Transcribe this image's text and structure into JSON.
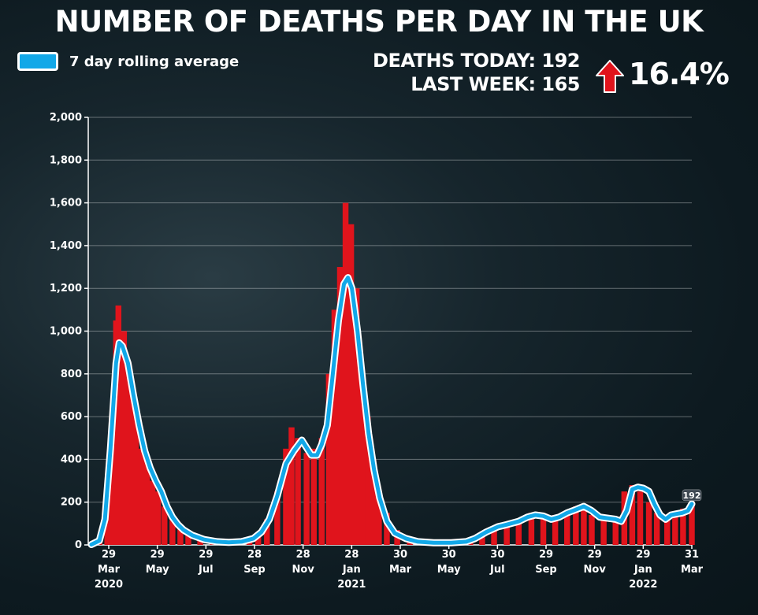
{
  "title": "NUMBER OF DEATHS PER DAY IN THE UK",
  "legend": {
    "label": "7 day rolling average"
  },
  "stats": {
    "today": "DEATHS TODAY: 192",
    "last_week": "LAST WEEK: 165",
    "change": "16.4%"
  },
  "colors": {
    "bars": "#e0141c",
    "line": "#12a8e8",
    "line_outline": "#ffffff"
  },
  "chart_data": {
    "type": "bar",
    "title": "NUMBER OF DEATHS PER DAY IN THE UK",
    "xlabel": "",
    "ylabel": "",
    "ylim": [
      0,
      2000
    ],
    "yticks": [
      "0",
      "200",
      "400",
      "600",
      "800",
      "1,000",
      "1,200",
      "1,400",
      "1,600",
      "1,800",
      "2,000"
    ],
    "x_ticks": [
      {
        "day": "29",
        "month": "Mar",
        "year": "2020"
      },
      {
        "day": "29",
        "month": "May",
        "year": ""
      },
      {
        "day": "29",
        "month": "Jul",
        "year": ""
      },
      {
        "day": "28",
        "month": "Sep",
        "year": ""
      },
      {
        "day": "28",
        "month": "Nov",
        "year": ""
      },
      {
        "day": "28",
        "month": "Jan",
        "year": "2021"
      },
      {
        "day": "30",
        "month": "Mar",
        "year": ""
      },
      {
        "day": "30",
        "month": "May",
        "year": ""
      },
      {
        "day": "30",
        "month": "Jul",
        "year": ""
      },
      {
        "day": "29",
        "month": "Sep",
        "year": ""
      },
      {
        "day": "29",
        "month": "Nov",
        "year": ""
      },
      {
        "day": "29",
        "month": "Jan",
        "year": "2022"
      },
      {
        "day": "31",
        "month": "Mar",
        "year": ""
      }
    ],
    "series": [
      {
        "name": "Deaths per day",
        "kind": "bar",
        "points": [
          [
            "2020-03-05",
            5
          ],
          [
            "2020-03-15",
            30
          ],
          [
            "2020-03-25",
            250
          ],
          [
            "2020-04-01",
            600
          ],
          [
            "2020-04-05",
            1050
          ],
          [
            "2020-04-08",
            1120
          ],
          [
            "2020-04-12",
            900
          ],
          [
            "2020-04-15",
            1000
          ],
          [
            "2020-04-19",
            850
          ],
          [
            "2020-04-24",
            700
          ],
          [
            "2020-04-30",
            600
          ],
          [
            "2020-05-07",
            450
          ],
          [
            "2020-05-14",
            400
          ],
          [
            "2020-05-21",
            300
          ],
          [
            "2020-05-28",
            250
          ],
          [
            "2020-06-05",
            180
          ],
          [
            "2020-06-15",
            120
          ],
          [
            "2020-06-25",
            80
          ],
          [
            "2020-07-05",
            50
          ],
          [
            "2020-07-20",
            30
          ],
          [
            "2020-08-05",
            20
          ],
          [
            "2020-08-20",
            15
          ],
          [
            "2020-09-05",
            15
          ],
          [
            "2020-09-20",
            30
          ],
          [
            "2020-10-01",
            60
          ],
          [
            "2020-10-12",
            120
          ],
          [
            "2020-10-25",
            250
          ],
          [
            "2020-11-05",
            450
          ],
          [
            "2020-11-12",
            550
          ],
          [
            "2020-11-20",
            500
          ],
          [
            "2020-12-01",
            430
          ],
          [
            "2020-12-10",
            450
          ],
          [
            "2020-12-20",
            500
          ],
          [
            "2020-12-29",
            800
          ],
          [
            "2021-01-05",
            1100
          ],
          [
            "2021-01-12",
            1300
          ],
          [
            "2021-01-19",
            1600
          ],
          [
            "2021-01-26",
            1500
          ],
          [
            "2021-02-02",
            1200
          ],
          [
            "2021-02-09",
            800
          ],
          [
            "2021-02-16",
            600
          ],
          [
            "2021-02-23",
            400
          ],
          [
            "2021-03-02",
            250
          ],
          [
            "2021-03-12",
            150
          ],
          [
            "2021-03-25",
            70
          ],
          [
            "2021-04-10",
            30
          ],
          [
            "2021-04-25",
            20
          ],
          [
            "2021-05-15",
            10
          ],
          [
            "2021-06-05",
            10
          ],
          [
            "2021-06-25",
            20
          ],
          [
            "2021-07-10",
            50
          ],
          [
            "2021-07-25",
            80
          ],
          [
            "2021-08-10",
            100
          ],
          [
            "2021-08-25",
            120
          ],
          [
            "2021-09-10",
            150
          ],
          [
            "2021-09-25",
            130
          ],
          [
            "2021-10-10",
            140
          ],
          [
            "2021-10-25",
            160
          ],
          [
            "2021-11-05",
            180
          ],
          [
            "2021-11-15",
            160
          ],
          [
            "2021-11-25",
            140
          ],
          [
            "2021-12-10",
            130
          ],
          [
            "2021-12-25",
            120
          ],
          [
            "2022-01-05",
            250
          ],
          [
            "2022-01-15",
            280
          ],
          [
            "2022-01-25",
            250
          ],
          [
            "2022-02-05",
            200
          ],
          [
            "2022-02-15",
            150
          ],
          [
            "2022-02-28",
            140
          ],
          [
            "2022-03-10",
            150
          ],
          [
            "2022-03-20",
            170
          ],
          [
            "2022-03-31",
            192
          ]
        ]
      },
      {
        "name": "7 day rolling average",
        "kind": "line",
        "points": [
          [
            "2020-03-05",
            2
          ],
          [
            "2020-03-15",
            20
          ],
          [
            "2020-03-22",
            120
          ],
          [
            "2020-03-29",
            450
          ],
          [
            "2020-04-05",
            850
          ],
          [
            "2020-04-09",
            945
          ],
          [
            "2020-04-13",
            930
          ],
          [
            "2020-04-20",
            850
          ],
          [
            "2020-04-27",
            700
          ],
          [
            "2020-05-04",
            560
          ],
          [
            "2020-05-11",
            440
          ],
          [
            "2020-05-18",
            360
          ],
          [
            "2020-05-25",
            300
          ],
          [
            "2020-06-01",
            250
          ],
          [
            "2020-06-08",
            180
          ],
          [
            "2020-06-15",
            130
          ],
          [
            "2020-06-22",
            95
          ],
          [
            "2020-06-29",
            70
          ],
          [
            "2020-07-10",
            45
          ],
          [
            "2020-07-25",
            25
          ],
          [
            "2020-08-10",
            15
          ],
          [
            "2020-08-25",
            12
          ],
          [
            "2020-09-10",
            15
          ],
          [
            "2020-09-25",
            30
          ],
          [
            "2020-10-05",
            60
          ],
          [
            "2020-10-15",
            120
          ],
          [
            "2020-10-25",
            230
          ],
          [
            "2020-11-05",
            380
          ],
          [
            "2020-11-15",
            440
          ],
          [
            "2020-11-25",
            490
          ],
          [
            "2020-11-30",
            460
          ],
          [
            "2020-12-07",
            420
          ],
          [
            "2020-12-14",
            420
          ],
          [
            "2020-12-20",
            470
          ],
          [
            "2020-12-27",
            560
          ],
          [
            "2021-01-03",
            800
          ],
          [
            "2021-01-10",
            1050
          ],
          [
            "2021-01-17",
            1220
          ],
          [
            "2021-01-22",
            1250
          ],
          [
            "2021-01-27",
            1200
          ],
          [
            "2021-02-03",
            1000
          ],
          [
            "2021-02-10",
            750
          ],
          [
            "2021-02-17",
            520
          ],
          [
            "2021-02-24",
            350
          ],
          [
            "2021-03-03",
            220
          ],
          [
            "2021-03-12",
            110
          ],
          [
            "2021-03-22",
            55
          ],
          [
            "2021-04-05",
            30
          ],
          [
            "2021-04-20",
            15
          ],
          [
            "2021-05-10",
            10
          ],
          [
            "2021-06-01",
            10
          ],
          [
            "2021-06-20",
            15
          ],
          [
            "2021-07-01",
            30
          ],
          [
            "2021-07-15",
            60
          ],
          [
            "2021-07-30",
            85
          ],
          [
            "2021-08-10",
            95
          ],
          [
            "2021-08-25",
            110
          ],
          [
            "2021-09-05",
            130
          ],
          [
            "2021-09-15",
            140
          ],
          [
            "2021-09-25",
            135
          ],
          [
            "2021-10-05",
            120
          ],
          [
            "2021-10-15",
            130
          ],
          [
            "2021-10-25",
            150
          ],
          [
            "2021-11-05",
            165
          ],
          [
            "2021-11-15",
            180
          ],
          [
            "2021-11-25",
            160
          ],
          [
            "2021-12-05",
            130
          ],
          [
            "2021-12-15",
            125
          ],
          [
            "2021-12-25",
            120
          ],
          [
            "2022-01-01",
            110
          ],
          [
            "2022-01-08",
            160
          ],
          [
            "2022-01-15",
            260
          ],
          [
            "2022-01-22",
            270
          ],
          [
            "2022-01-29",
            265
          ],
          [
            "2022-02-05",
            250
          ],
          [
            "2022-02-12",
            190
          ],
          [
            "2022-02-19",
            140
          ],
          [
            "2022-02-26",
            120
          ],
          [
            "2022-03-05",
            140
          ],
          [
            "2022-03-12",
            145
          ],
          [
            "2022-03-19",
            150
          ],
          [
            "2022-03-26",
            160
          ],
          [
            "2022-03-31",
            192
          ]
        ]
      }
    ],
    "annotations": [
      {
        "date": "2022-03-31",
        "value": 192,
        "text": "192"
      }
    ],
    "grid": true,
    "legend_position": "top-left"
  }
}
